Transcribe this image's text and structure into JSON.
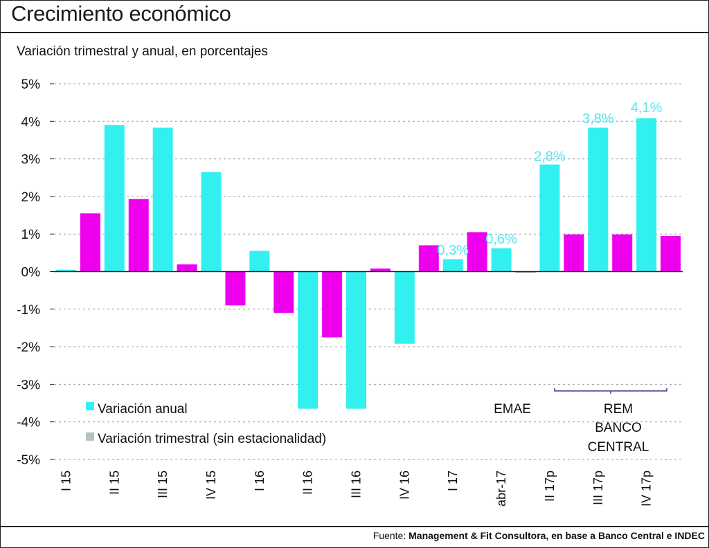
{
  "header": {
    "title": "Crecimiento económico",
    "subtitle": "Variación trimestral y anual, en porcentajes"
  },
  "footer": {
    "source_label": "Fuente:",
    "source_text": "Management & Fit Consultora, en base a Banco Central e INDEC"
  },
  "colors": {
    "anual": "#33f0f0",
    "trimestral": "#ee00ee",
    "legend_trimestral": "#b5c3c0",
    "annotation": "#4fe8f0",
    "bracket": "#3a3a8c"
  },
  "chart_data": {
    "type": "bar",
    "title": "Crecimiento económico",
    "subtitle": "Variación trimestral y anual, en porcentajes",
    "ylim": [
      -5,
      5
    ],
    "yticks": [
      5,
      4,
      3,
      2,
      1,
      0,
      -1,
      -2,
      -3,
      -4,
      -5
    ],
    "ytick_labels": [
      "5%",
      "4%",
      "3%",
      "2%",
      "1%",
      "0%",
      "-1%",
      "-2%",
      "-3%",
      "-4%",
      "-5%"
    ],
    "grid": true,
    "categories": [
      "I 15",
      "II 15",
      "III 15",
      "IV 15",
      "I 16",
      "II 16",
      "III 16",
      "IV 16",
      "I 17",
      "abr-17",
      "II 17p",
      "III 17p",
      "IV 17p"
    ],
    "bar_sequence": [
      {
        "series": "anual",
        "value": 0.05
      },
      {
        "series": "trimestral",
        "value": 1.55
      },
      {
        "series": "anual",
        "value": 3.9
      },
      {
        "series": "trimestral",
        "value": 1.93
      },
      {
        "series": "anual",
        "value": 3.83
      },
      {
        "series": "trimestral",
        "value": 0.19
      },
      {
        "series": "anual",
        "value": 2.65
      },
      {
        "series": "trimestral",
        "value": -0.9
      },
      {
        "series": "anual",
        "value": 0.55
      },
      {
        "series": "trimestral",
        "value": -1.1
      },
      {
        "series": "anual",
        "value": -3.65
      },
      {
        "series": "trimestral",
        "value": -1.75
      },
      {
        "series": "anual",
        "value": -3.65
      },
      {
        "series": "trimestral",
        "value": 0.08
      },
      {
        "series": "anual",
        "value": -1.92
      },
      {
        "series": "trimestral",
        "value": 0.7
      },
      {
        "series": "anual",
        "value": 0.33
      },
      {
        "series": "trimestral",
        "value": 1.05
      },
      {
        "series": "anual",
        "value": 0.62
      },
      {
        "series": "trimestral",
        "value": -0.03
      },
      {
        "series": "anual",
        "value": 2.85
      },
      {
        "series": "trimestral",
        "value": 0.99
      },
      {
        "series": "anual",
        "value": 3.83
      },
      {
        "series": "trimestral",
        "value": 0.99
      },
      {
        "series": "anual",
        "value": 4.08
      },
      {
        "series": "trimestral",
        "value": 0.95
      }
    ],
    "annotations": [
      {
        "text": "0,3%",
        "value": 0.3
      },
      {
        "text": "0,6%",
        "value": 0.6
      },
      {
        "text": "2,8%",
        "value": 2.8
      },
      {
        "text": "3,8%",
        "value": 3.8
      },
      {
        "text": "4,1%",
        "value": 4.1
      }
    ],
    "legend": {
      "position": "bottom-left",
      "entries": [
        {
          "name": "Variación anual",
          "series": "anual"
        },
        {
          "name": "Variación trimestral (sin estacionalidad)",
          "series": "trimestral"
        }
      ]
    },
    "notes": {
      "emae": "EMAE",
      "rem_lines": [
        "REM",
        "BANCO",
        "CENTRAL"
      ]
    }
  }
}
